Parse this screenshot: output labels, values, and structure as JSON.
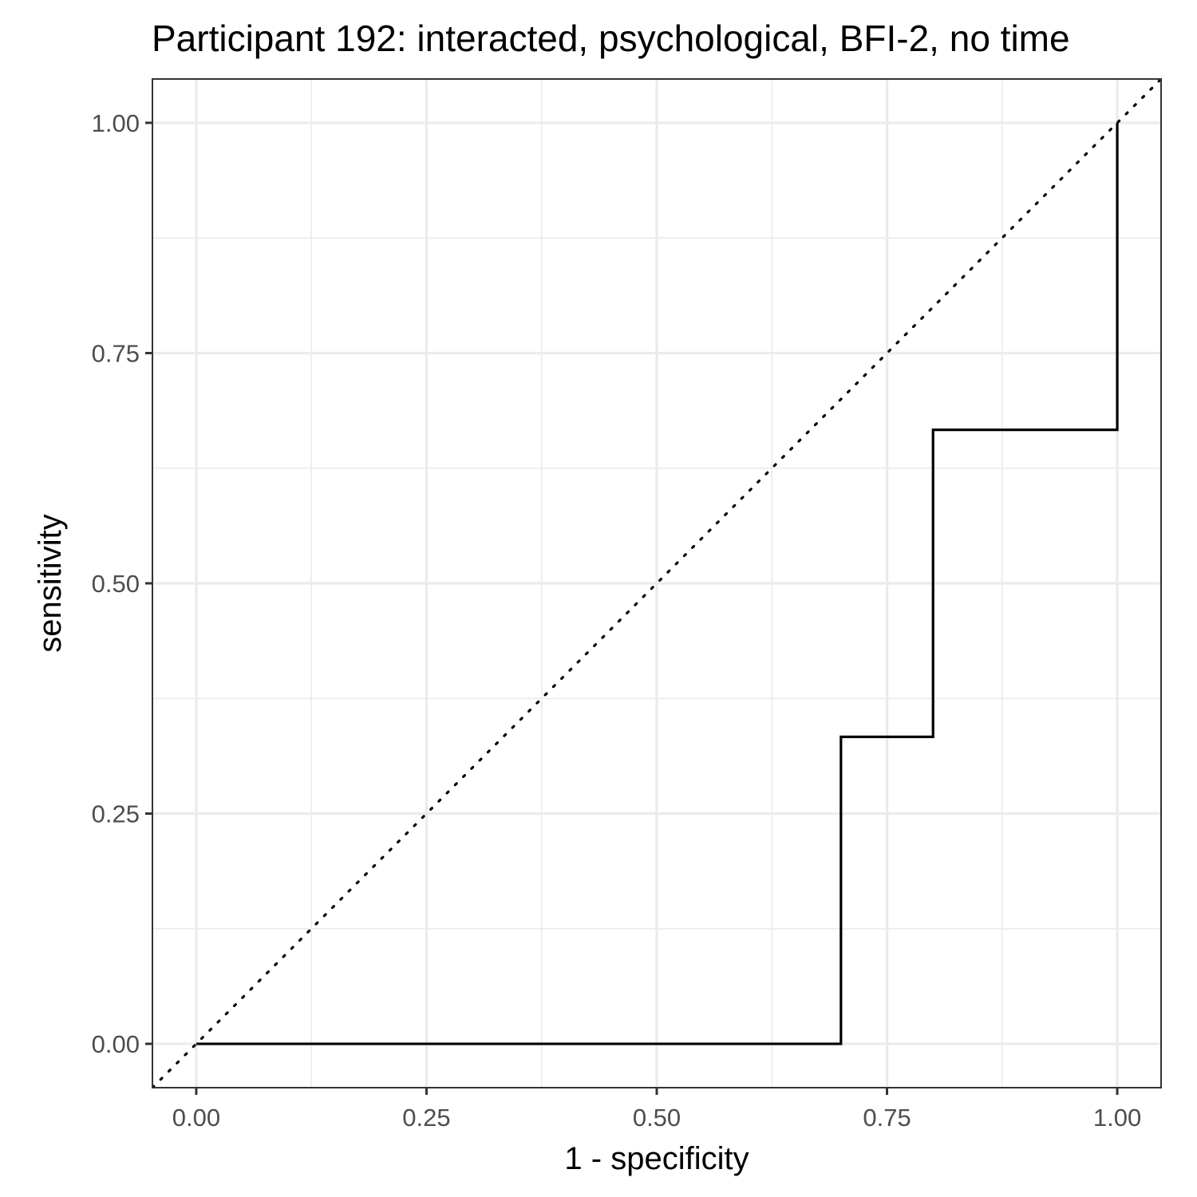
{
  "chart_data": {
    "type": "line",
    "title": "Participant 192: interacted, psychological, BFI-2, no time",
    "xlabel": "1 - specificity",
    "ylabel": "sensitivity",
    "xlim": [
      -0.0476,
      1.0476
    ],
    "ylim": [
      -0.0476,
      1.0476
    ],
    "x_ticks": [
      0,
      0.25,
      0.5,
      0.75,
      1
    ],
    "x_tick_labels": [
      "0.00",
      "0.25",
      "0.50",
      "0.75",
      "1.00"
    ],
    "y_ticks": [
      0,
      0.25,
      0.5,
      0.75,
      1
    ],
    "y_tick_labels": [
      "0.00",
      "0.25",
      "0.50",
      "0.75",
      "1.00"
    ],
    "grid": true,
    "series": [
      {
        "style": "step",
        "color": "#000000",
        "x": [
          0,
          0.7,
          0.7,
          0.8,
          0.8,
          1,
          1
        ],
        "y": [
          0,
          0,
          0.3333,
          0.3333,
          0.6667,
          0.6667,
          1
        ]
      }
    ],
    "reference_line": {
      "style": "dotted",
      "color": "#000000",
      "slope": 1,
      "intercept": 0
    }
  }
}
